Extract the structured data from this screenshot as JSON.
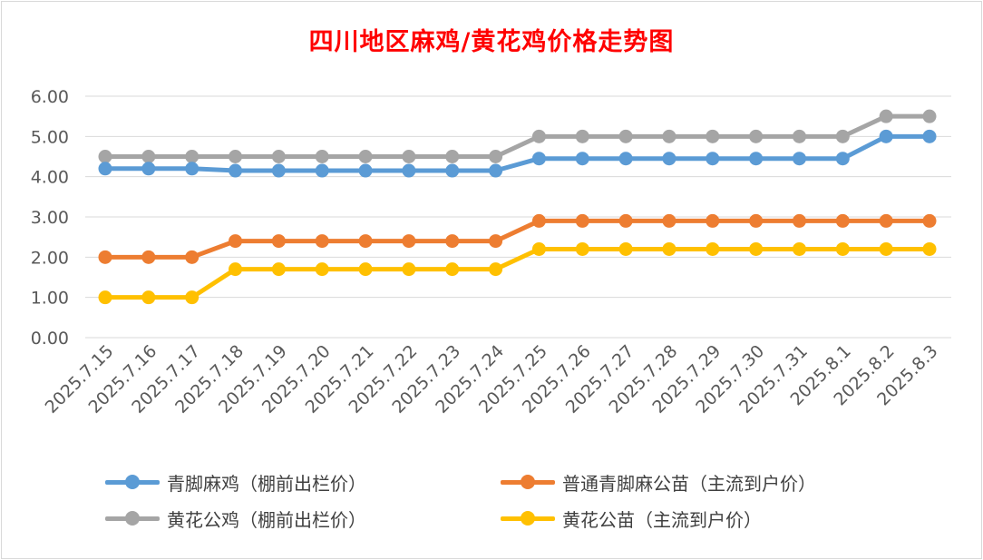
{
  "title": "四川地区麻鸡/黄花鸡价格走势图",
  "chart_data": {
    "type": "line",
    "title": "四川地区麻鸡/黄花鸡价格走势图",
    "categories": [
      "2025.7.15",
      "2025.7.16",
      "2025.7.17",
      "2025.7.18",
      "2025.7.19",
      "2025.7.20",
      "2025.7.21",
      "2025.7.22",
      "2025.7.23",
      "2025.7.24",
      "2025.7.25",
      "2025.7.26",
      "2025.7.27",
      "2025.7.28",
      "2025.7.29",
      "2025.7.30",
      "2025.7.31",
      "2025.8.1",
      "2025.8.2",
      "2025.8.3"
    ],
    "ylim": [
      0,
      6
    ],
    "yticks": [
      "0.00",
      "1.00",
      "2.00",
      "3.00",
      "4.00",
      "5.00",
      "6.00"
    ],
    "grid": true,
    "legend_position": "bottom",
    "series": [
      {
        "name": "青脚麻鸡（棚前出栏价）",
        "color": "#5b9bd5",
        "values": [
          4.2,
          4.2,
          4.2,
          4.15,
          4.15,
          4.15,
          4.15,
          4.15,
          4.15,
          4.15,
          4.45,
          4.45,
          4.45,
          4.45,
          4.45,
          4.45,
          4.45,
          4.45,
          5.0,
          5.0
        ]
      },
      {
        "name": "普通青脚麻公苗（主流到户价）",
        "color": "#ed7d31",
        "values": [
          2.0,
          2.0,
          2.0,
          2.4,
          2.4,
          2.4,
          2.4,
          2.4,
          2.4,
          2.4,
          2.9,
          2.9,
          2.9,
          2.9,
          2.9,
          2.9,
          2.9,
          2.9,
          2.9,
          2.9
        ]
      },
      {
        "name": "黄花公鸡（棚前出栏价）",
        "color": "#a5a5a5",
        "values": [
          4.5,
          4.5,
          4.5,
          4.5,
          4.5,
          4.5,
          4.5,
          4.5,
          4.5,
          4.5,
          5.0,
          5.0,
          5.0,
          5.0,
          5.0,
          5.0,
          5.0,
          5.0,
          5.5,
          5.5
        ]
      },
      {
        "name": "黄花公苗（主流到户价）",
        "color": "#ffc000",
        "values": [
          1.0,
          1.0,
          1.0,
          1.7,
          1.7,
          1.7,
          1.7,
          1.7,
          1.7,
          1.7,
          2.2,
          2.2,
          2.2,
          2.2,
          2.2,
          2.2,
          2.2,
          2.2,
          2.2,
          2.2
        ]
      }
    ]
  }
}
